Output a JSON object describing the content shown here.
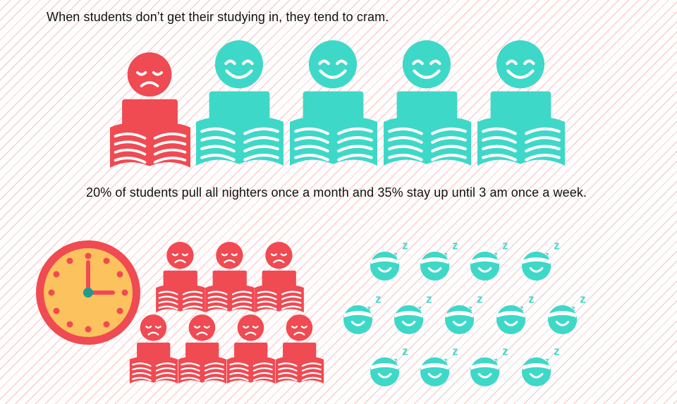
{
  "headline": "When students don’t get their studying in, they tend to cram.",
  "statistic_text": "20% of students pull all nighters once a month and 35% stay up until 3 am once a week.",
  "icons": {
    "student_reader": "student-reading-icon",
    "clock": "clock-icon",
    "sleeper": "sleeping-head-icon"
  },
  "colors": {
    "sad": "#f04a52",
    "happy": "#3ed8c8",
    "clock_face": "#fbc25d",
    "clock_rim": "#f04a52",
    "clock_center": "#1f9b8f"
  },
  "row_one": {
    "cramming_count": 1,
    "happy_count": 4
  },
  "cramming_group_count": 7,
  "sleeping_group_count": 13,
  "clock_time": "3:00"
}
